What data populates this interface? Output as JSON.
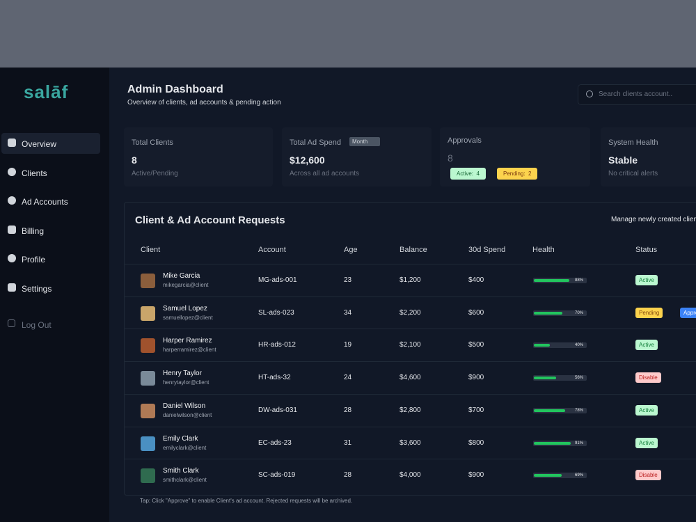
{
  "brand": "salāf",
  "nav": [
    "Overview",
    "Clients",
    "Ad Accounts",
    "Billing",
    "Profile",
    "Settings"
  ],
  "logout": "Log Out",
  "header": {
    "title": "Admin Dashboard",
    "subtitle": "Overview of clients, ad accounts & pending action",
    "search_placeholder": "Search clients account.."
  },
  "stats": [
    {
      "label": "Total Clients",
      "value": "8",
      "note": "Active/Pending"
    },
    {
      "label": "Total Ad Spend",
      "dropdown": "Month",
      "value": "$12,600",
      "note": "Across all ad accounts"
    },
    {
      "label": "Approvals",
      "value": "8",
      "badges": [
        "Active:  4",
        "Pending:  2"
      ]
    },
    {
      "label": "System Health",
      "value": "Stable",
      "note": "No critical alerts"
    }
  ],
  "table": {
    "title": "Client & Ad Account Requests",
    "subtitle": "Manage newly created clients",
    "columns": [
      "Client",
      "Account",
      "Age",
      "Balance",
      "30d Spend",
      "Health",
      "Status"
    ],
    "rows": [
      {
        "name": "Mike Garcia",
        "email": "mikegarcia@client",
        "account": "MG-ads-001",
        "age": "23",
        "balance": "$1,200",
        "spend": "$400",
        "health": "88%",
        "status": "Active"
      },
      {
        "name": "Samuel Lopez",
        "email": "samuellopez@client",
        "account": "SL-ads-023",
        "age": "34",
        "balance": "$2,200",
        "spend": "$600",
        "health": "70%",
        "status": "Pending",
        "action": "Approve"
      },
      {
        "name": "Harper Ramirez",
        "email": "harperramirez@client",
        "account": "HR-ads-012",
        "age": "19",
        "balance": "$2,100",
        "spend": "$500",
        "health": "40%",
        "status": "Active"
      },
      {
        "name": "Henry Taylor",
        "email": "henrytaylor@client",
        "account": "HT-ads-32",
        "age": "24",
        "balance": "$4,600",
        "spend": "$900",
        "health": "56%",
        "status": "Disable"
      },
      {
        "name": "Daniel Wilson",
        "email": "danielwilson@client",
        "account": "DW-ads-031",
        "age": "28",
        "balance": "$2,800",
        "spend": "$700",
        "health": "78%",
        "status": "Active"
      },
      {
        "name": "Emily Clark",
        "email": "emilyclark@client",
        "account": "EC-ads-23",
        "age": "31",
        "balance": "$3,600",
        "spend": "$800",
        "health": "91%",
        "status": "Active"
      },
      {
        "name": "Smith Clark",
        "email": "smithclark@client",
        "account": "SC-ads-019",
        "age": "28",
        "balance": "$4,000",
        "spend": "$900",
        "health": "69%",
        "status": "Disable"
      }
    ],
    "footnote": "Tap: Click \"Approve\" to enable Client's ad account. Rejected requests will be archived."
  }
}
